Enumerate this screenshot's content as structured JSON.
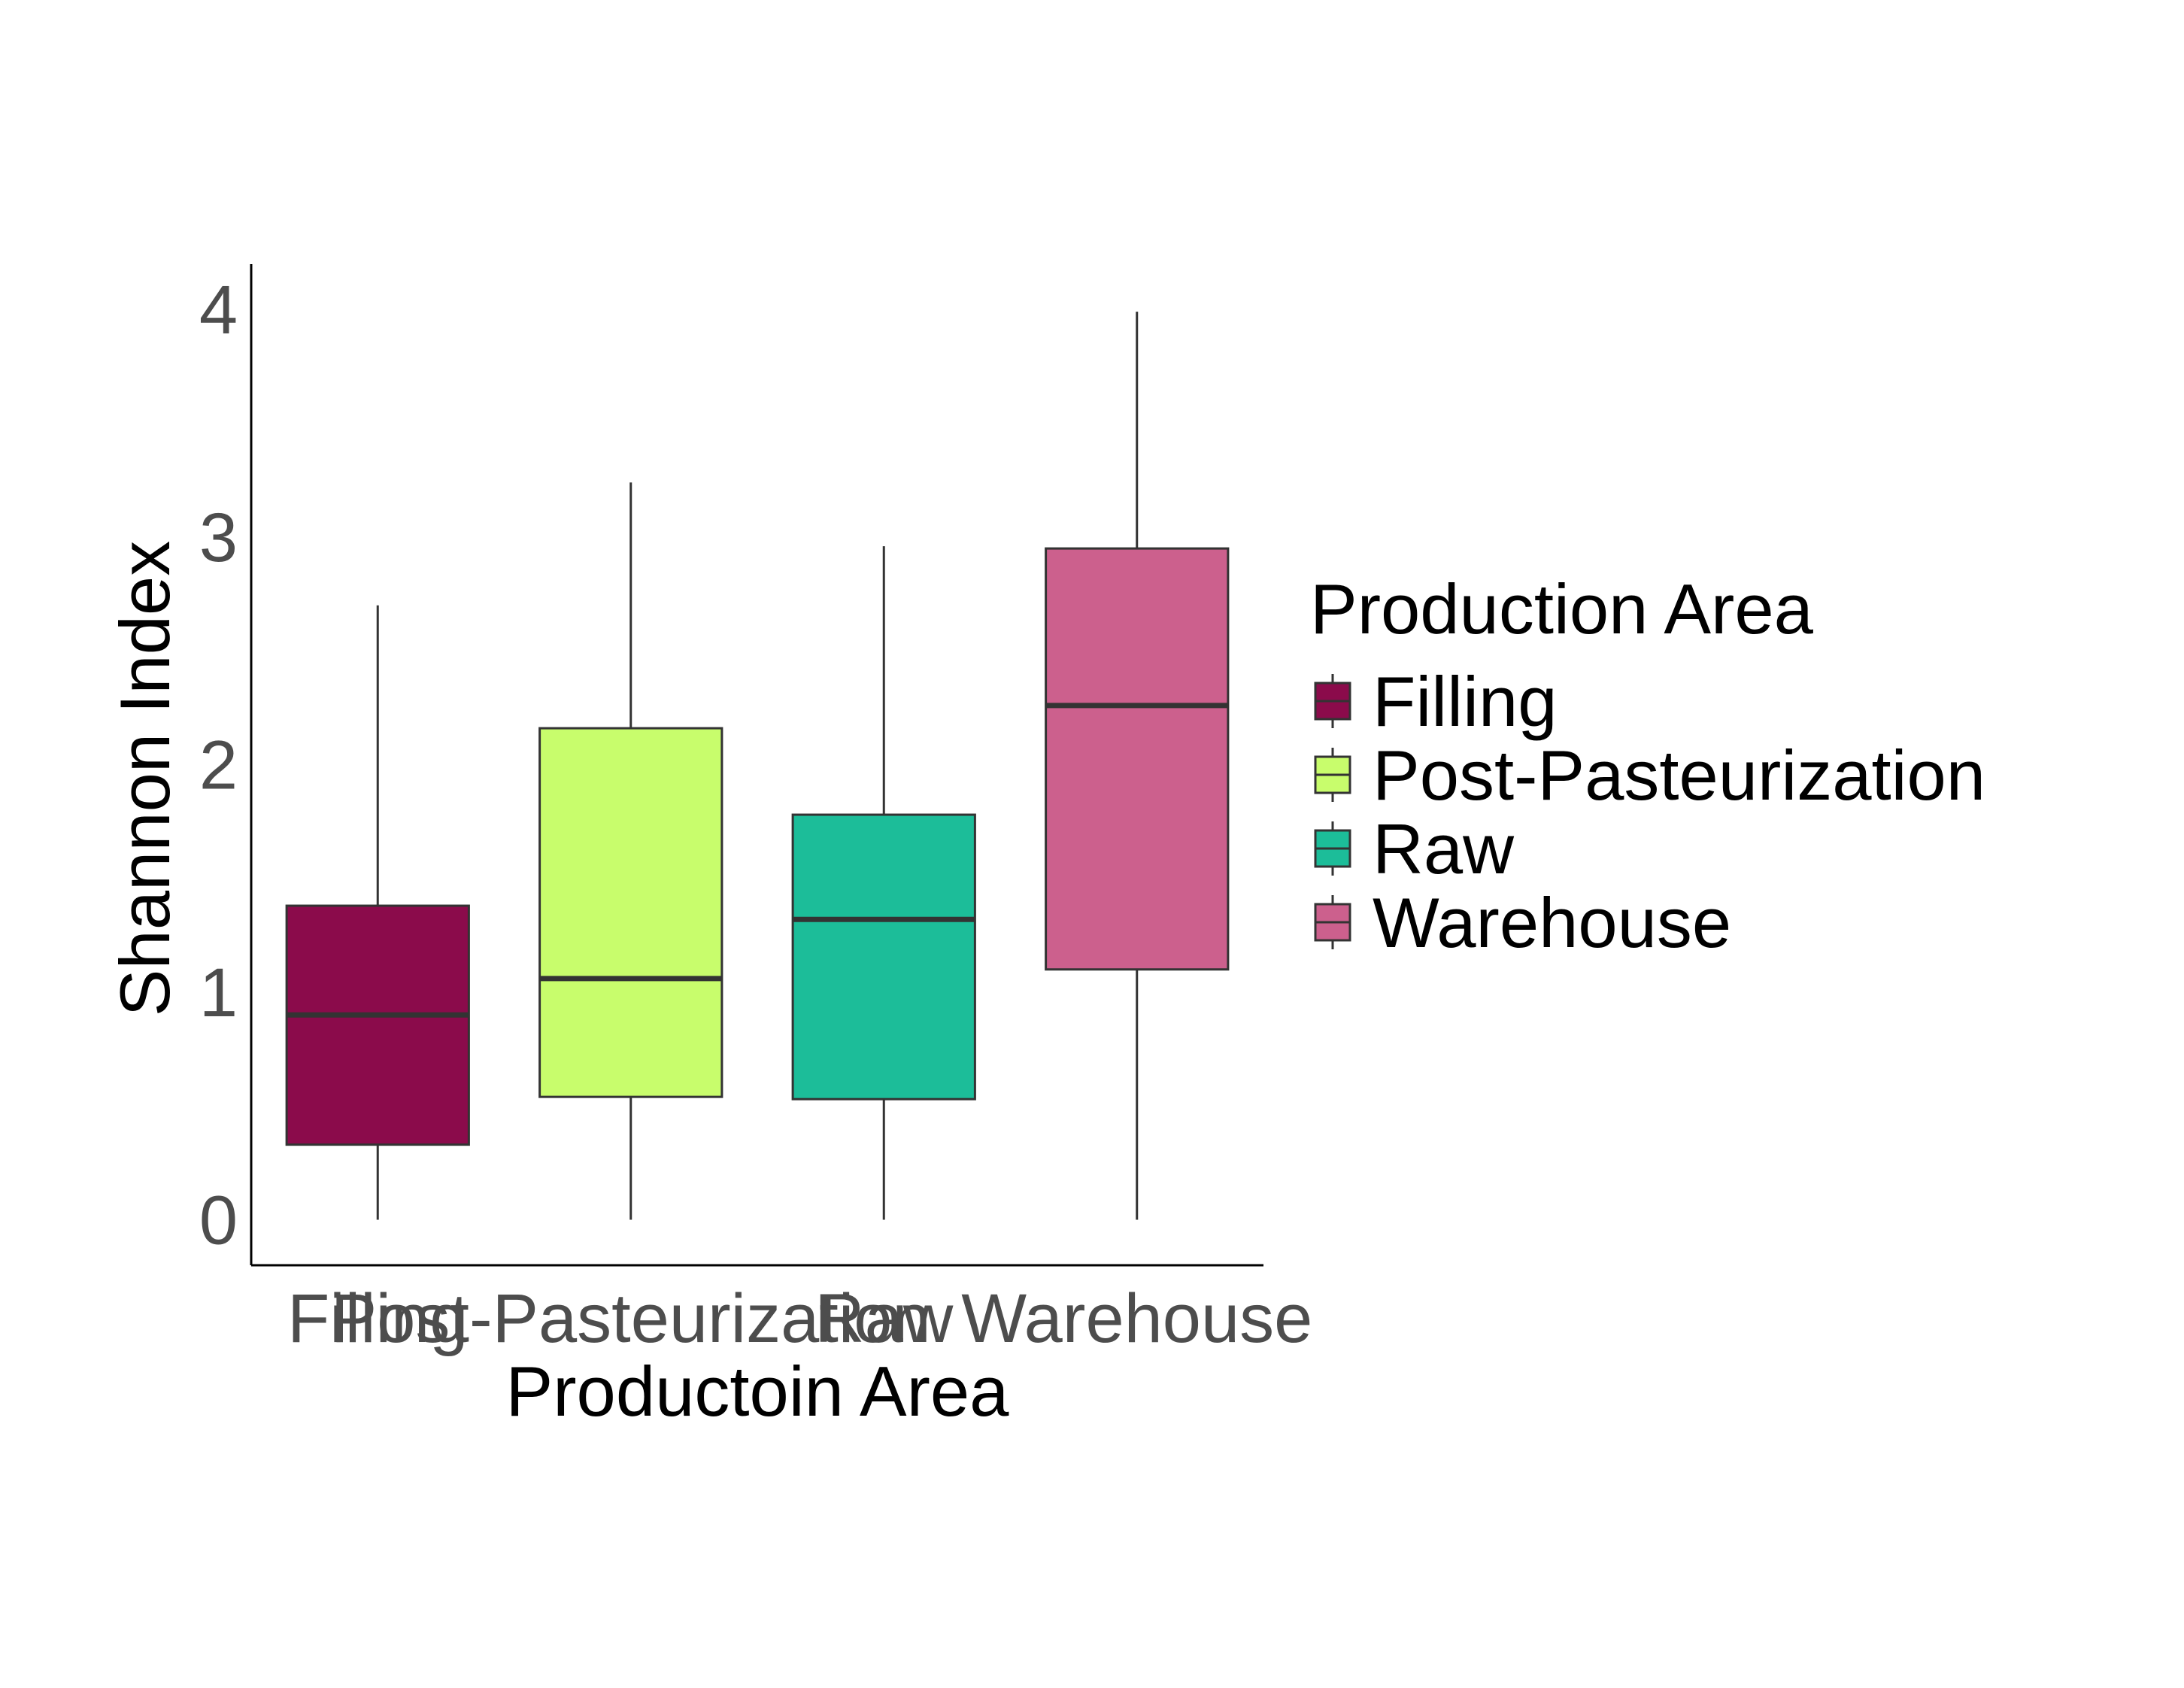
{
  "chart_data": {
    "type": "box",
    "xlabel": "Productoin Area",
    "ylabel": "Shannon Index",
    "ylim": [
      -0.2,
      4.2
    ],
    "yticks": [
      0,
      1,
      2,
      3,
      4
    ],
    "categories": [
      "Filling",
      "Post-Pasteurization",
      "Raw",
      "Warehouse"
    ],
    "boxes": [
      {
        "category": "Filling",
        "min": 0.0,
        "q1": 0.33,
        "median": 0.9,
        "q3": 1.38,
        "max": 2.7
      },
      {
        "category": "Post-Pasteurization",
        "min": 0.0,
        "q1": 0.54,
        "median": 1.06,
        "q3": 2.16,
        "max": 3.24
      },
      {
        "category": "Raw",
        "min": 0.0,
        "q1": 0.53,
        "median": 1.32,
        "q3": 1.78,
        "max": 2.96
      },
      {
        "category": "Warehouse",
        "min": 0.0,
        "q1": 1.1,
        "median": 2.26,
        "q3": 2.95,
        "max": 3.99
      }
    ],
    "legend": {
      "title": "Production Area",
      "position": "right",
      "entries": [
        {
          "label": "Filling",
          "color": "#8b0b4b"
        },
        {
          "label": "Post-Pasteurization",
          "color": "#c8fd6c"
        },
        {
          "label": "Raw",
          "color": "#1cbd99"
        },
        {
          "label": "Warehouse",
          "color": "#cc608d"
        }
      ]
    },
    "grid": false
  }
}
